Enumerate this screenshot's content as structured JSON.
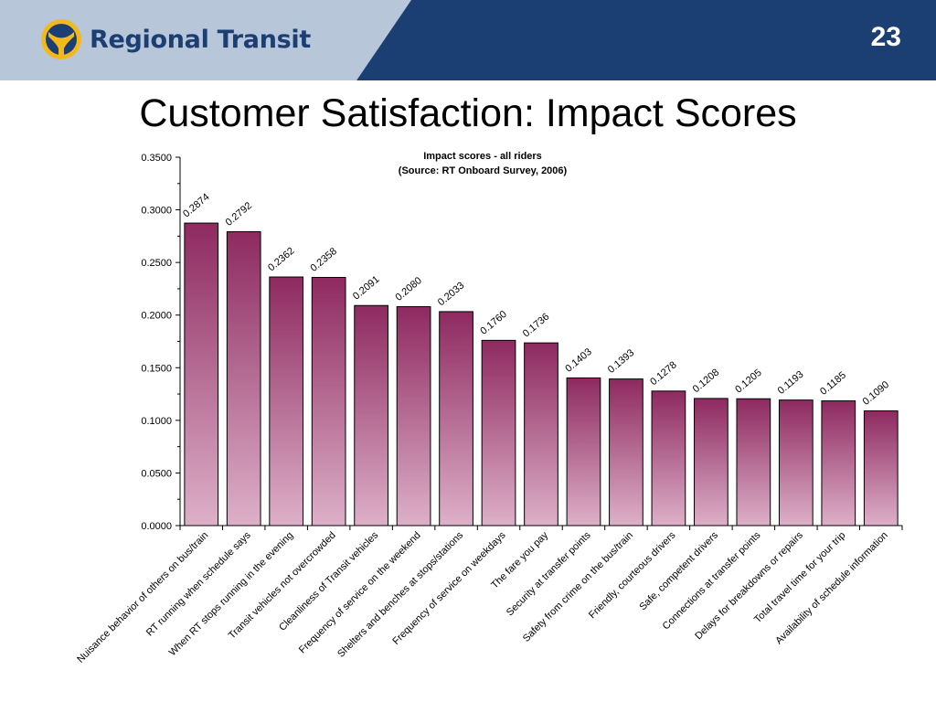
{
  "header": {
    "logo_text": "Regional Transit",
    "page_number": "23",
    "colors": {
      "navy": "#1c3f73",
      "band_light": "#b7c6d8",
      "gold": "#f2b91e"
    }
  },
  "slide": {
    "title": "Customer Satisfaction: Impact Scores"
  },
  "chart_data": {
    "type": "bar",
    "title": "Impact scores - all riders",
    "subtitle": "(Source: RT Onboard Survey, 2006)",
    "xlabel": "",
    "ylabel": "",
    "ylim": [
      0,
      0.35
    ],
    "yticks": [
      "0.0000",
      "0.0500",
      "0.1000",
      "0.1500",
      "0.2000",
      "0.2500",
      "0.3000",
      "0.3500"
    ],
    "grid": false,
    "categories": [
      "Nuisance behavior of others on bus/train",
      "RT running when schedule says",
      "When RT stops running in the evening",
      "Transit vehicles not overcrowded",
      "Cleanliness of Transit vehicles",
      "Frequency of service on the weekend",
      "Shelters and benches at stops/stations",
      "Frequency of service on weekdays",
      "The fare you pay",
      "Security at transfer points",
      "Safety from crime on the bus/train",
      "Friendly, courteous drivers",
      "Safe, competent drivers",
      "Connections at transfer points",
      "Delays for breakdowns or repairs",
      "Total travel time for your trip",
      "Availability of schedule information"
    ],
    "values": [
      0.2874,
      0.2792,
      0.2362,
      0.2358,
      0.2091,
      0.208,
      0.2033,
      0.176,
      0.1736,
      0.1403,
      0.1393,
      0.1278,
      0.1208,
      0.1205,
      0.1193,
      0.1185,
      0.109
    ],
    "value_labels": [
      "0.2874",
      "0.2792",
      "0.2362",
      "0.2358",
      "0.2091",
      "0.2080",
      "0.2033",
      "0.1760",
      "0.1736",
      "0.1403",
      "0.1393",
      "0.1278",
      "0.1208",
      "0.1205",
      "0.1193",
      "0.1185",
      "0.1090"
    ],
    "colors": {
      "bar_top": "#8e2a60",
      "bar_bottom": "#ddb0c8",
      "bar_edge": "#000000"
    }
  }
}
